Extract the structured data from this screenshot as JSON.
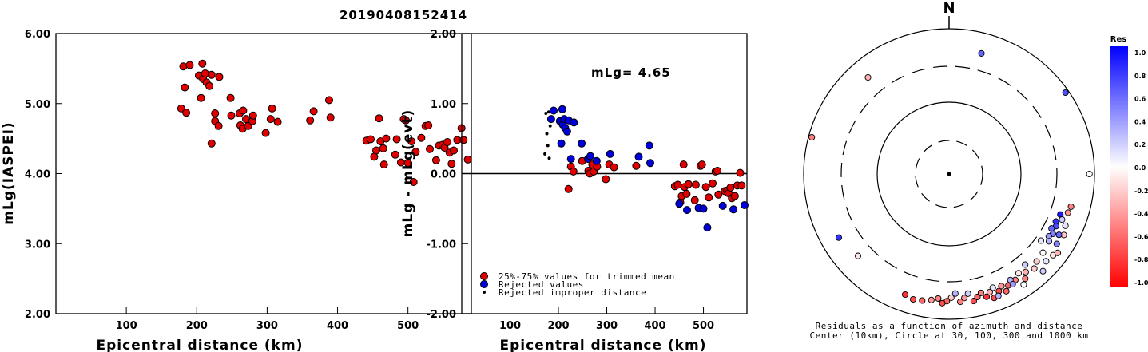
{
  "title": "20190408152414",
  "colors": {
    "red": "#e00000",
    "blue": "#0000dd",
    "black": "#000000"
  },
  "chart_data": [
    {
      "type": "scatter",
      "xlabel": "Epicentral distance (km)",
      "ylabel": "mLg(IASPEI)",
      "xlim": [
        0,
        590
      ],
      "ylim": [
        2.0,
        6.0
      ],
      "x_ticks": [
        "100",
        "200",
        "300",
        "400",
        "500"
      ],
      "y_ticks": [
        "2.00",
        "3.00",
        "4.00",
        "5.00",
        "6.00"
      ],
      "series": [
        {
          "points": [
            [
              178,
              4.93
            ],
            [
              181,
              5.53
            ],
            [
              183,
              5.23
            ],
            [
              185,
              4.87
            ],
            [
              190,
              5.55
            ],
            [
              203,
              5.4
            ],
            [
              206,
              5.08
            ],
            [
              208,
              5.57
            ],
            [
              209,
              5.35
            ],
            [
              212,
              5.43
            ],
            [
              214,
              5.3
            ],
            [
              218,
              5.25
            ],
            [
              221,
              4.43
            ],
            [
              221,
              5.41
            ],
            [
              226,
              4.75
            ],
            [
              226,
              4.86
            ],
            [
              231,
              4.68
            ],
            [
              232,
              5.38
            ],
            [
              248,
              5.08
            ],
            [
              249,
              4.83
            ],
            [
              261,
              4.86
            ],
            [
              262,
              4.69
            ],
            [
              265,
              4.64
            ],
            [
              266,
              4.9
            ],
            [
              270,
              4.78
            ],
            [
              273,
              4.68
            ],
            [
              279,
              4.75
            ],
            [
              280,
              4.83
            ],
            [
              298,
              4.58
            ],
            [
              305,
              4.78
            ],
            [
              307,
              4.93
            ],
            [
              315,
              4.74
            ],
            [
              361,
              4.76
            ],
            [
              366,
              4.89
            ],
            [
              388,
              5.05
            ],
            [
              390,
              4.8
            ],
            [
              441,
              4.47
            ],
            [
              447,
              4.49
            ],
            [
              452,
              4.24
            ],
            [
              455,
              4.33
            ],
            [
              459,
              4.79
            ],
            [
              461,
              4.46
            ],
            [
              465,
              4.36
            ],
            [
              466,
              4.13
            ],
            [
              469,
              4.5
            ],
            [
              482,
              4.27
            ],
            [
              484,
              4.49
            ],
            [
              490,
              4.16
            ],
            [
              494,
              4.78
            ],
            [
              497,
              4.76
            ],
            [
              500,
              4.15
            ],
            [
              505,
              4.46
            ],
            [
              508,
              3.88
            ],
            [
              511,
              4.31
            ],
            [
              519,
              4.51
            ],
            [
              525,
              4.68
            ],
            [
              529,
              4.69
            ],
            [
              531,
              4.35
            ],
            [
              540,
              4.19
            ],
            [
              544,
              4.4
            ],
            [
              549,
              4.41
            ],
            [
              552,
              4.37
            ],
            [
              556,
              4.45
            ],
            [
              559,
              4.3
            ],
            [
              562,
              4.14
            ],
            [
              565,
              4.33
            ],
            [
              570,
              4.48
            ],
            [
              576,
              4.65
            ],
            [
              579,
              4.48
            ],
            [
              585,
              4.2
            ]
          ]
        }
      ]
    },
    {
      "type": "scatter",
      "xlabel": "Epicentral distance (km)",
      "ylabel": "mLg - mLg(evt)",
      "xlim": [
        0,
        590
      ],
      "ylim": [
        -2.0,
        2.0
      ],
      "x_ticks": [
        "100",
        "200",
        "300",
        "400",
        "500"
      ],
      "y_ticks": [
        "-2.00",
        "-1.00",
        "0.00",
        "1.00",
        "2.00"
      ],
      "annotation": "mLg= 4.65",
      "reference_line": 0.0,
      "legend": {
        "placement": "bottom-left",
        "entries": [
          "25%-75% values for trimmed mean",
          "Rejected values",
          "Rejected improper distance"
        ]
      },
      "series": [
        {
          "name": "25%-75% values for trimmed mean",
          "color": "#e00000",
          "points": [
            [
              221,
              -0.22
            ],
            [
              226,
              0.1
            ],
            [
              231,
              0.03
            ],
            [
              249,
              0.18
            ],
            [
              262,
              0.04
            ],
            [
              265,
              0.0
            ],
            [
              270,
              0.13
            ],
            [
              273,
              0.03
            ],
            [
              280,
              0.1
            ],
            [
              298,
              -0.08
            ],
            [
              305,
              0.13
            ],
            [
              315,
              0.09
            ],
            [
              361,
              0.11
            ],
            [
              441,
              -0.18
            ],
            [
              447,
              -0.16
            ],
            [
              452,
              -0.41
            ],
            [
              455,
              -0.32
            ],
            [
              459,
              0.13
            ],
            [
              461,
              -0.19
            ],
            [
              465,
              -0.29
            ],
            [
              469,
              -0.15
            ],
            [
              482,
              -0.38
            ],
            [
              484,
              -0.16
            ],
            [
              494,
              0.11
            ],
            [
              497,
              0.13
            ],
            [
              505,
              -0.19
            ],
            [
              511,
              -0.34
            ],
            [
              519,
              -0.14
            ],
            [
              525,
              0.03
            ],
            [
              529,
              0.04
            ],
            [
              531,
              -0.3
            ],
            [
              544,
              -0.25
            ],
            [
              549,
              -0.24
            ],
            [
              552,
              -0.28
            ],
            [
              556,
              -0.2
            ],
            [
              559,
              -0.35
            ],
            [
              565,
              -0.32
            ],
            [
              570,
              -0.17
            ],
            [
              576,
              0.01
            ],
            [
              579,
              -0.17
            ]
          ]
        },
        {
          "name": "Rejected values",
          "color": "#0000dd",
          "points": [
            [
              185,
              0.78
            ],
            [
              190,
              0.9
            ],
            [
              203,
              0.75
            ],
            [
              206,
              0.43
            ],
            [
              208,
              0.92
            ],
            [
              209,
              0.7
            ],
            [
              212,
              0.78
            ],
            [
              214,
              0.65
            ],
            [
              218,
              0.6
            ],
            [
              221,
              0.76
            ],
            [
              226,
              0.21
            ],
            [
              232,
              0.73
            ],
            [
              248,
              0.43
            ],
            [
              261,
              0.21
            ],
            [
              266,
              0.25
            ],
            [
              279,
              0.18
            ],
            [
              307,
              0.28
            ],
            [
              366,
              0.24
            ],
            [
              388,
              0.4
            ],
            [
              390,
              0.15
            ],
            [
              450,
              -0.43
            ],
            [
              466,
              -0.52
            ],
            [
              490,
              -0.49
            ],
            [
              500,
              -0.5
            ],
            [
              508,
              -0.77
            ],
            [
              540,
              -0.46
            ],
            [
              562,
              -0.51
            ],
            [
              585,
              -0.45
            ]
          ]
        },
        {
          "name": "Rejected improper distance",
          "color": "#000000",
          "points": [
            [
              172,
              0.28
            ],
            [
              174,
              0.86
            ],
            [
              176,
              0.57
            ],
            [
              178,
              0.4
            ],
            [
              180,
              0.88
            ],
            [
              181,
              0.22
            ],
            [
              183,
              0.68
            ]
          ]
        }
      ]
    },
    {
      "type": "scatter",
      "title": "N",
      "caption": [
        "Residuals as a function of azimuth and distance",
        "Center (10km), Circle at 30, 100, 300 and 1000 km"
      ],
      "colorbar": {
        "label": "Res",
        "ticks": [
          "1.0",
          "0.8",
          "0.6",
          "0.4",
          "0.2",
          "0.0",
          "-0.2",
          "-0.4",
          "-0.6",
          "-0.8",
          "-1.0"
        ],
        "range": [
          -1.0,
          1.0
        ]
      },
      "rings_km": [
        10,
        30,
        100,
        300,
        1000
      ],
      "series": [
        {
          "name": "stations (azimuth deg, distance km, residual)",
          "points": [
            [
              -40,
              540,
              -0.3
            ],
            [
              -75,
              900,
              -0.5
            ],
            [
              -120,
              560,
              0.8
            ],
            [
              15,
              520,
              0.6
            ],
            [
              55,
              900,
              0.7
            ],
            [
              90,
              850,
              0.0
            ],
            [
              110,
              420,
              0.9
            ],
            [
              114,
              400,
              0.8
            ],
            [
              116,
              430,
              0.7
            ],
            [
              118,
              390,
              0.6
            ],
            [
              120,
              440,
              0.5
            ],
            [
              122,
              410,
              0.4
            ],
            [
              124,
              450,
              0.3
            ],
            [
              112,
              470,
              0.2
            ],
            [
              126,
              360,
              0.1
            ],
            [
              108,
              520,
              -0.4
            ],
            [
              105,
              540,
              -0.5
            ],
            [
              130,
              480,
              0.0
            ],
            [
              135,
              500,
              -0.2
            ],
            [
              140,
              420,
              0.2
            ],
            [
              142,
              510,
              -0.3
            ],
            [
              145,
              460,
              -0.1
            ],
            [
              148,
              520,
              -0.5
            ],
            [
              150,
              480,
              0.3
            ],
            [
              152,
              540,
              -0.6
            ],
            [
              155,
              500,
              -0.4
            ],
            [
              157,
              560,
              -0.7
            ],
            [
              159,
              470,
              0.1
            ],
            [
              161,
              520,
              -0.3
            ],
            [
              163,
              580,
              -0.8
            ],
            [
              165,
              490,
              -0.5
            ],
            [
              167,
              540,
              -0.6
            ],
            [
              169,
              600,
              -0.7
            ],
            [
              171,
              460,
              0.2
            ],
            [
              173,
              520,
              -0.4
            ],
            [
              175,
              580,
              -0.5
            ],
            [
              177,
              440,
              0.3
            ],
            [
              179,
              500,
              -0.2
            ],
            [
              181,
              560,
              -0.6
            ],
            [
              183,
              600,
              -0.7
            ],
            [
              185,
              520,
              -0.5
            ],
            [
              188,
              560,
              -0.4
            ],
            [
              192,
              600,
              -0.6
            ],
            [
              196,
              620,
              -0.7
            ],
            [
              200,
              580,
              -0.8
            ],
            [
              138,
              560,
              -0.2
            ],
            [
              144,
              600,
              -0.5
            ],
            [
              154,
              620,
              -0.6
            ],
            [
              160,
              650,
              -0.7
            ],
            [
              132,
              620,
              0.1
            ],
            [
              128,
              650,
              -0.1
            ],
            [
              146,
              680,
              0.0
            ],
            [
              136,
              720,
              0.2
            ],
            [
              126,
              700,
              -0.3
            ],
            [
              150,
              560,
              0.4
            ],
            [
              158,
              640,
              0.3
            ],
            [
              118,
              610,
              -0.2
            ],
            [
              114,
              560,
              0.1
            ],
            [
              123,
              580,
              0.5
            ],
            [
              119,
              530,
              0.6
            ],
            [
              228,
              480,
              -0.1
            ]
          ]
        }
      ]
    }
  ]
}
